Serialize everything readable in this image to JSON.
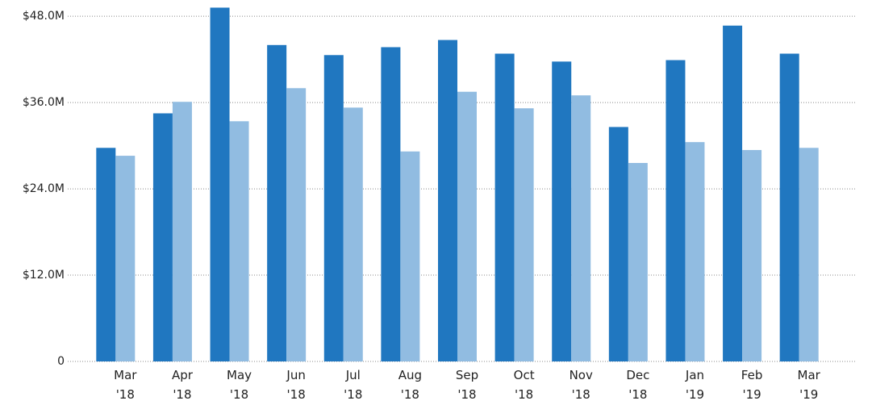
{
  "chart_data": {
    "type": "bar",
    "categories": [
      "Mar '18",
      "Apr '18",
      "May '18",
      "Jun '18",
      "Jul '18",
      "Aug '18",
      "Sep '18",
      "Oct '18",
      "Nov '18",
      "Dec '18",
      "Jan '19",
      "Feb '19",
      "Mar '19"
    ],
    "series": [
      {
        "color": "#2077c0",
        "values": [
          29700000,
          34500000,
          49200000,
          44000000,
          42600000,
          43700000,
          44700000,
          42800000,
          41700000,
          32600000,
          41900000,
          46700000,
          42800000
        ]
      },
      {
        "color": "#91bce1",
        "values": [
          28600000,
          36100000,
          33400000,
          38000000,
          35300000,
          29200000,
          37500000,
          35200000,
          37000000,
          27600000,
          30500000,
          29400000,
          29700000
        ]
      }
    ],
    "ylim": [
      0,
      49700000
    ],
    "yticks": [
      0,
      {
        "value": 12000000,
        "label": "$12.0M"
      },
      {
        "value": 24000000,
        "label": "$24.0M"
      },
      {
        "value": 36000000,
        "label": "$36.0M"
      },
      {
        "value": 48000000,
        "label": "$48.0M"
      }
    ],
    "grid": true
  }
}
